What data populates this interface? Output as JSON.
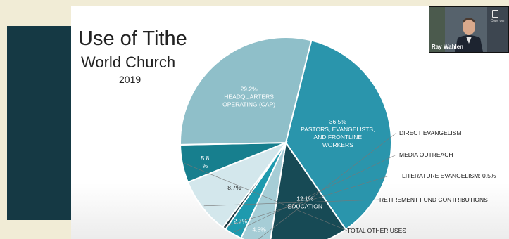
{
  "slide": {
    "title": "Use of Tithe",
    "subtitle": "World Church",
    "year": "2019"
  },
  "video": {
    "participant_name": "Ray Wahlen",
    "icon": "copy-icon",
    "icon_label": "Copy gen"
  },
  "colors": {
    "background": "#f1ecd6",
    "band": "#153944"
  },
  "chart_data": {
    "type": "pie",
    "slices": [
      {
        "label_lines": [
          "36.5%",
          "PASTORS, EVANGELISTS,",
          "AND FRONTLINE",
          "WORKERS"
        ],
        "value": 36.5,
        "color": "#2a95ac"
      },
      {
        "label_lines": [
          "12.1%",
          "EDUCATION"
        ],
        "value": 12.1,
        "color": "#174a55"
      },
      {
        "label_lines": [
          "4.5%"
        ],
        "callout": "DIRECT EVANGELISM",
        "value": 4.5,
        "color": "#a6cdd6"
      },
      {
        "label_lines": [
          "2.7%"
        ],
        "callout": "MEDIA OUTREACH",
        "value": 2.7,
        "color": "#1e9aae"
      },
      {
        "label_lines": [],
        "callout": "LITERATURE EVANGELISM: 0.5%",
        "value": 0.5,
        "color": "#16323a"
      },
      {
        "label_lines": [
          "8.7%"
        ],
        "callout": "RETIREMENT FUND CONTRIBUTIONS",
        "value": 8.7,
        "color": "#d3e7ec"
      },
      {
        "label_lines": [
          "5.8",
          "%"
        ],
        "callout": "TOTAL OTHER USES",
        "value": 5.8,
        "color": "#177f8e"
      },
      {
        "label_lines": [
          "29.2%",
          "HEADQUARTERS",
          "OPERATING (CAP)"
        ],
        "value": 29.2,
        "color": "#8fbfc9"
      }
    ]
  }
}
